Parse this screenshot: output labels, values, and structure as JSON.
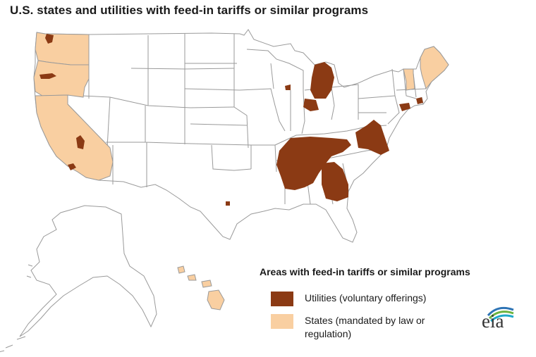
{
  "title": "U.S. states and utilities with feed-in  tariffs or similar programs",
  "legend": {
    "title": "Areas with feed-in tariffs or similar programs",
    "items": [
      {
        "label": "Utilities (voluntary offerings)",
        "color": "#8B3A14"
      },
      {
        "label": "States (mandated by law or regulation)",
        "color": "#F9CFA1"
      }
    ]
  },
  "colors": {
    "utility": "#8B3A14",
    "state": "#F9CFA1",
    "border": "#9a9a9a",
    "land": "#ffffff"
  },
  "logo": {
    "text": "eia",
    "arc_colors": [
      "#2e74b5",
      "#6cb33f",
      "#1fa9c9"
    ]
  },
  "map_data": {
    "highlighted_states": [
      "Washington",
      "Oregon",
      "California",
      "Vermont",
      "Maine"
    ],
    "utility_areas": [
      "Tennessee Valley region",
      "Georgia",
      "North Carolina / Virginia",
      "Michigan",
      "Wisconsin",
      "Texas (Austin area)",
      "New Jersey / Long Island area",
      "Rhode Island area"
    ]
  }
}
